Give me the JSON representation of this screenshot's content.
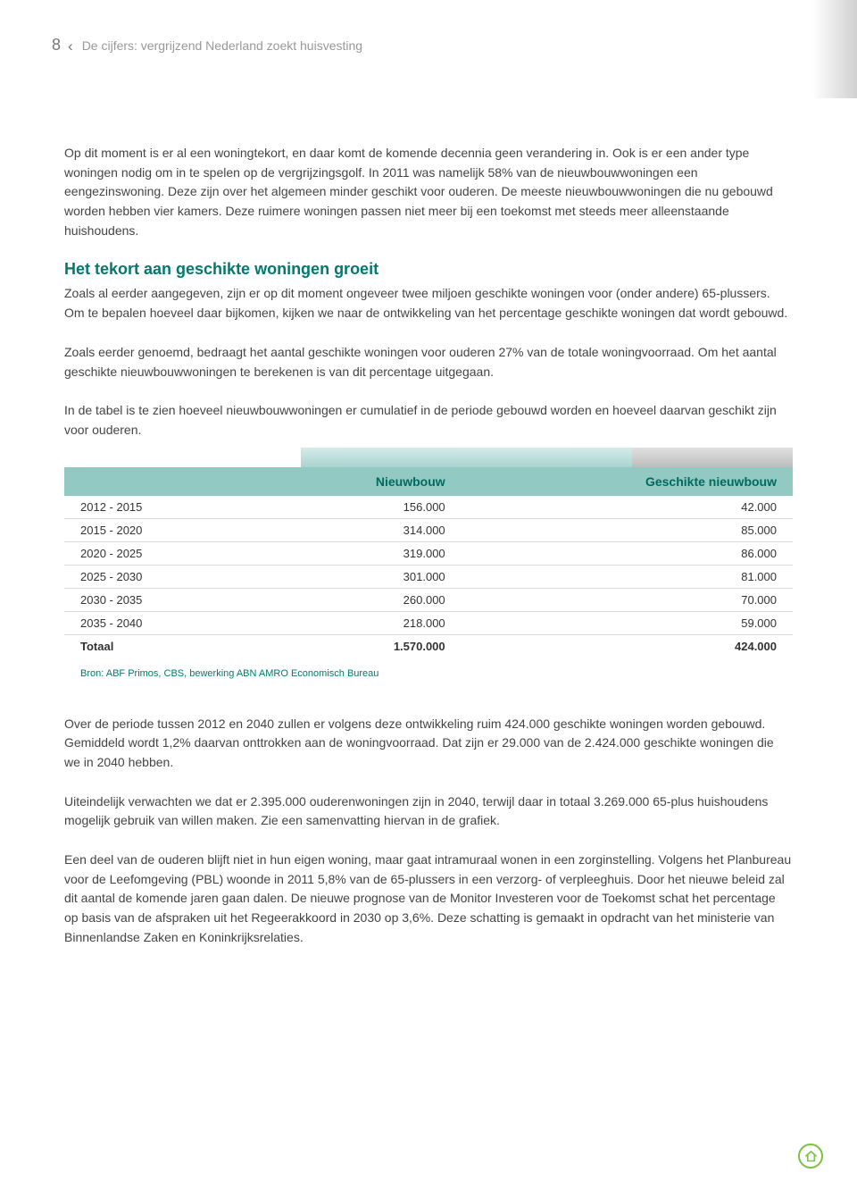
{
  "colors": {
    "accent": "#007a6e",
    "table_header_bg": "#92c9c3",
    "table_header_text": "#006a60",
    "row_border": "#d9d9d9",
    "body_text": "#444444",
    "muted_text": "#999999",
    "icon_green": "#7bc142"
  },
  "header": {
    "page_number": "8",
    "chapter_title": "De cijfers: vergrijzend Nederland zoekt huisvesting"
  },
  "paragraphs": {
    "intro": "Op dit moment is er al een woningtekort, en daar komt de komende decennia geen verandering in. Ook is er een ander type woningen nodig om in te spelen op de vergrijzingsgolf. In 2011 was namelijk 58% van de nieuwbouwwoningen een eengezinswoning. Deze zijn over het algemeen minder geschikt voor ouderen. De meeste nieuwbouwwoningen die nu gebouwd worden hebben vier kamers. Deze ruimere woningen passen niet meer bij een toekomst met steeds meer alleenstaande huishoudens.",
    "section_title": "Het tekort aan geschikte woningen groeit",
    "section_p1": "Zoals al eerder aangegeven, zijn er op dit moment ongeveer twee miljoen geschikte woningen voor (onder andere) 65-plussers. Om te bepalen hoeveel daar bijkomen, kijken we naar de ontwikkeling van het percentage geschikte woningen dat wordt gebouwd.",
    "section_p2": "Zoals eerder genoemd, bedraagt het aantal geschikte woningen voor ouderen 27% van de totale woningvoorraad. Om het aantal geschikte nieuwbouwwoningen te berekenen is van dit percentage uitgegaan.",
    "section_p3": "In de tabel is te zien hoeveel nieuwbouwwoningen er cumulatief in de periode gebouwd worden en hoeveel daarvan geschikt zijn voor ouderen.",
    "after_p1": "Over de periode tussen 2012 en 2040 zullen er volgens deze ontwikkeling ruim 424.000 geschikte woningen worden gebouwd. Gemiddeld wordt 1,2% daarvan onttrokken aan de woningvoorraad. Dat zijn er 29.000 van de 2.424.000 geschikte woningen die we in 2040 hebben.",
    "after_p2": "Uiteindelijk verwachten we dat er 2.395.000 ouderenwoningen zijn in 2040, terwijl daar in totaal 3.269.000 65-plus huishoudens mogelijk gebruik van willen maken. Zie een samenvatting hiervan in de grafiek.",
    "after_p3": "Een deel van de ouderen blijft niet in hun eigen woning, maar gaat intramuraal wonen in een zorginstelling. Volgens het Planbureau voor de Leefomgeving (PBL) woonde in 2011 5,8% van de 65-plussers in een verzorg- of verpleeghuis. Door het nieuwe beleid zal dit aantal de komende jaren gaan dalen. De nieuwe prognose van de Monitor Investeren voor de Toekomst schat het percentage op basis van de afspraken uit het Regeerakkoord in 2030 op 3,6%. Deze schatting is gemaakt in opdracht van het ministerie van Binnenlandse Zaken en Koninkrijksrelaties."
  },
  "table": {
    "columns": [
      "",
      "Nieuwbouw",
      "Geschikte nieuwbouw"
    ],
    "col_widths": [
      "33%",
      "33%",
      "34%"
    ],
    "col_align": [
      "left",
      "right",
      "right"
    ],
    "header_fontsize": 14,
    "cell_fontsize": 13,
    "rows": [
      [
        "2012 - 2015",
        "156.000",
        "42.000"
      ],
      [
        "2015 - 2020",
        "314.000",
        "85.000"
      ],
      [
        "2020 - 2025",
        "319.000",
        "86.000"
      ],
      [
        "2025 - 2030",
        "301.000",
        "81.000"
      ],
      [
        "2030 - 2035",
        "260.000",
        "70.000"
      ],
      [
        "2035 - 2040",
        "218.000",
        "59.000"
      ]
    ],
    "total_row": [
      "Totaal",
      "1.570.000",
      "424.000"
    ],
    "source": "Bron: ABF Primos, CBS, bewerking ABN AMRO Economisch Bureau"
  }
}
